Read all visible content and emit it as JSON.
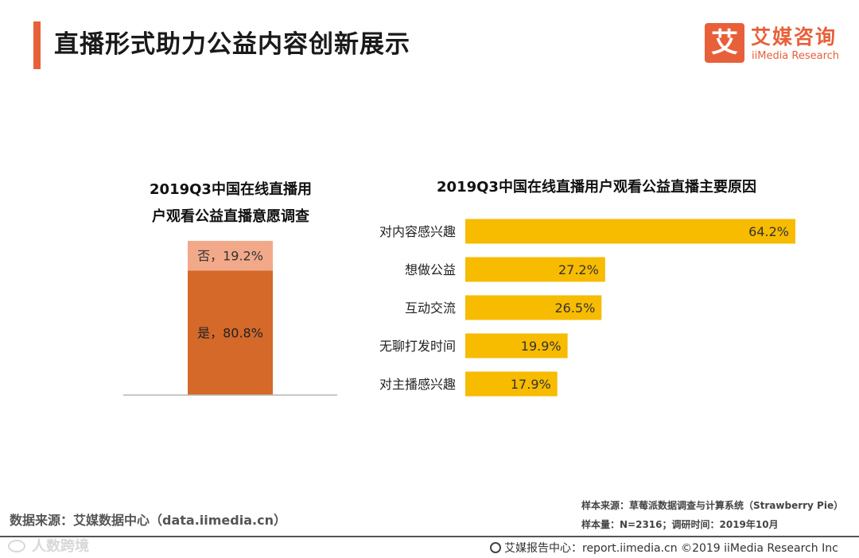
{
  "header": {
    "title": "直播形式助力公益内容创新展示"
  },
  "logo": {
    "mark": "艾",
    "name_cn": "艾媒咨询",
    "name_en": "iiMedia Research"
  },
  "colors": {
    "accent": "#e8603a",
    "yes_bar": "#d4692a",
    "no_bar": "#f2a98a",
    "reason_bar": "#f7bb00"
  },
  "chart_data": [
    {
      "type": "bar",
      "stacked": true,
      "title_line1": "2019Q3中国在线直播用",
      "title_line2": "户观看公益直播意愿调查",
      "ylim": [
        0,
        100
      ],
      "segments": [
        {
          "name": "是",
          "value": 80.8,
          "label": "是，80.8%"
        },
        {
          "name": "否",
          "value": 19.2,
          "label": "否，19.2%"
        }
      ]
    },
    {
      "type": "bar",
      "orientation": "horizontal",
      "title": "2019Q3中国在线直播用户观看公益直播主要原因",
      "xlim": [
        0,
        80
      ],
      "categories": [
        "对内容感兴趣",
        "想做公益",
        "互动交流",
        "无聊打发时间",
        "对主播感兴趣"
      ],
      "values": [
        64.2,
        27.2,
        26.5,
        19.9,
        17.9
      ],
      "value_labels": [
        "64.2%",
        "27.2%",
        "26.5%",
        "19.9%",
        "17.9%"
      ]
    }
  ],
  "footer": {
    "source": "数据来源：艾媒数据中心（data.iimedia.cn）",
    "sample_source": "样本来源：草莓派数据调查与计算系统（Strawberry Pie）",
    "sample_size": "样本量：N=2316；调研时间：2019年10月",
    "report_center": "艾媒报告中心：report.iimedia.cn   ©2019  iiMedia Research  Inc",
    "watermark": "人数跨境"
  }
}
